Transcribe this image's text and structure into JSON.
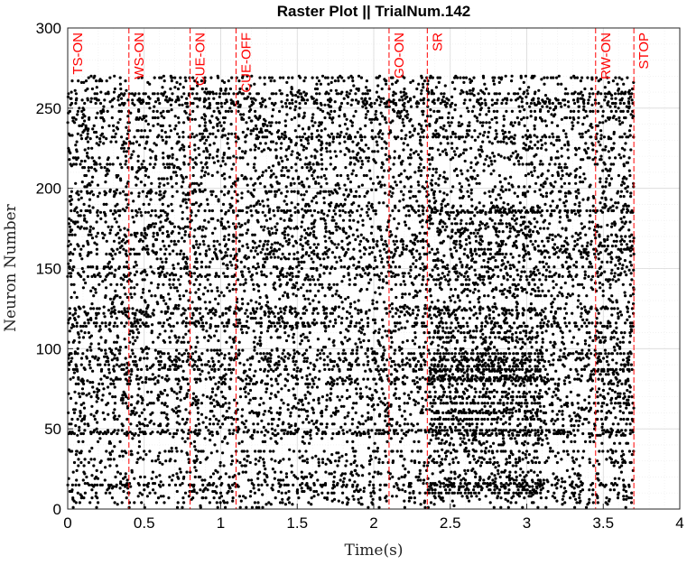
{
  "chart_data": {
    "type": "scatter",
    "subtype": "raster",
    "title": "Raster Plot || TrialNum.142",
    "xlabel": "Time(s)",
    "ylabel": "Neuron Number",
    "xlim": [
      0,
      4
    ],
    "ylim": [
      0,
      300
    ],
    "x_ticks": [
      "0",
      "0.5",
      "1",
      "1.5",
      "2",
      "2.5",
      "3",
      "3.5",
      "4"
    ],
    "y_ticks": [
      "0",
      "50",
      "100",
      "150",
      "200",
      "250",
      "300"
    ],
    "grid": true,
    "minor_grid": true,
    "marker_color": "#000000",
    "event_color": "#ff0000",
    "events": [
      {
        "label": "TS-ON",
        "t": 0.0
      },
      {
        "label": "WS-ON",
        "t": 0.4
      },
      {
        "label": "CUE-ON",
        "t": 0.8
      },
      {
        "label": "CUE-OFF",
        "t": 1.1
      },
      {
        "label": "GO-ON",
        "t": 2.1
      },
      {
        "label": "SR",
        "t": 2.35
      },
      {
        "label": "RW-ON",
        "t": 3.45
      },
      {
        "label": "STOP",
        "t": 3.7
      }
    ],
    "series": [
      {
        "spike_time_range": [
          0,
          3.7
        ],
        "neuron_range": [
          1,
          270
        ]
      }
    ]
  }
}
